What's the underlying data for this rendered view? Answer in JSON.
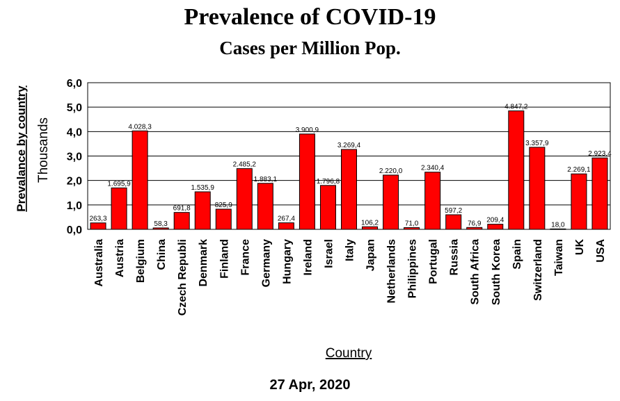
{
  "header": {
    "title": "Prevalence of COVID-19",
    "subtitle": "Cases per Million Pop."
  },
  "footer": {
    "date": "27 Apr, 2020"
  },
  "colors": {
    "bar": "#ff0000",
    "bar_stroke": "#000000",
    "grid": "#000000"
  },
  "chart_data": {
    "type": "bar",
    "title": "Prevalence of COVID-19",
    "subtitle": "Cases per Million Pop.",
    "xlabel": "Country",
    "ylabel": "Prevalance by country",
    "ylabel_units": "Thousands",
    "ylim": [
      0,
      6
    ],
    "yticks": [
      "0,0",
      "1,0",
      "2,0",
      "3,0",
      "4,0",
      "5,0",
      "6,0"
    ],
    "grid": true,
    "categories": [
      "Australia",
      "Austria",
      "Belgium",
      "China",
      "Czech Republi",
      "Denmark",
      "Finland",
      "France",
      "Germany",
      "Hungary",
      "Ireland",
      "Israel",
      "Italy",
      "Japan",
      "Netherlands",
      "Philippines",
      "Portugal",
      "Russia",
      "South Africa",
      "South Korea",
      "Spain",
      "Switzerland",
      "Taiwan",
      "UK",
      "USA"
    ],
    "values": [
      0.2633,
      1.6959,
      4.0283,
      0.0583,
      0.6918,
      1.5359,
      0.8259,
      2.4852,
      1.8831,
      0.2674,
      3.9009,
      1.7968,
      3.2694,
      0.1062,
      2.22,
      0.071,
      2.3404,
      0.5972,
      0.0769,
      0.2094,
      4.8472,
      3.3579,
      0.018,
      2.2691,
      2.9234
    ],
    "value_labels": [
      "263,3",
      "1.695,9",
      "4.028,3",
      "58,3",
      "691,8",
      "1.535,9",
      "825,9",
      "2.485,2",
      "1.883,1",
      "267,4",
      "3.900,9",
      "1.796,8",
      "3.269,4",
      "106,2",
      "2.220,0",
      "71,0",
      "2.340,4",
      "597,2",
      "76,9",
      "209,4",
      "4.847,2",
      "3.357,9",
      "18,0",
      "2.269,1",
      "2.923,4"
    ]
  }
}
